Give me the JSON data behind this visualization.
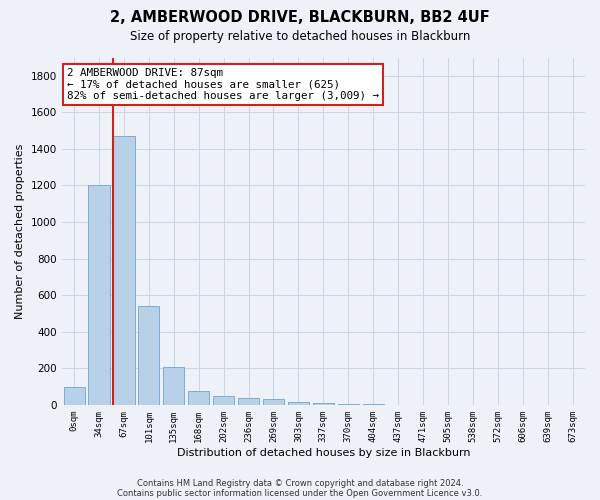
{
  "title": "2, AMBERWOOD DRIVE, BLACKBURN, BB2 4UF",
  "subtitle": "Size of property relative to detached houses in Blackburn",
  "xlabel": "Distribution of detached houses by size in Blackburn",
  "ylabel": "Number of detached properties",
  "bar_color": "#b8d0e8",
  "bar_edge_color": "#7aadd4",
  "categories": [
    "0sqm",
    "34sqm",
    "67sqm",
    "101sqm",
    "135sqm",
    "168sqm",
    "202sqm",
    "236sqm",
    "269sqm",
    "303sqm",
    "337sqm",
    "370sqm",
    "404sqm",
    "437sqm",
    "471sqm",
    "505sqm",
    "538sqm",
    "572sqm",
    "606sqm",
    "639sqm",
    "673sqm"
  ],
  "values": [
    95,
    1200,
    1470,
    540,
    205,
    75,
    50,
    40,
    30,
    18,
    10,
    5,
    3,
    0,
    0,
    0,
    0,
    0,
    0,
    0,
    0
  ],
  "ylim": [
    0,
    1900
  ],
  "yticks": [
    0,
    200,
    400,
    600,
    800,
    1000,
    1200,
    1400,
    1600,
    1800
  ],
  "vline_color": "#cc2222",
  "annotation_line1": "2 AMBERWOOD DRIVE: 87sqm",
  "annotation_line2": "← 17% of detached houses are smaller (625)",
  "annotation_line3": "82% of semi-detached houses are larger (3,009) →",
  "annotation_box_color": "#ffffff",
  "annotation_box_edge": "#cc2222",
  "footer1": "Contains HM Land Registry data © Crown copyright and database right 2024.",
  "footer2": "Contains public sector information licensed under the Open Government Licence v3.0.",
  "bg_color": "#eef2f8",
  "grid_color": "#ccd6e8"
}
